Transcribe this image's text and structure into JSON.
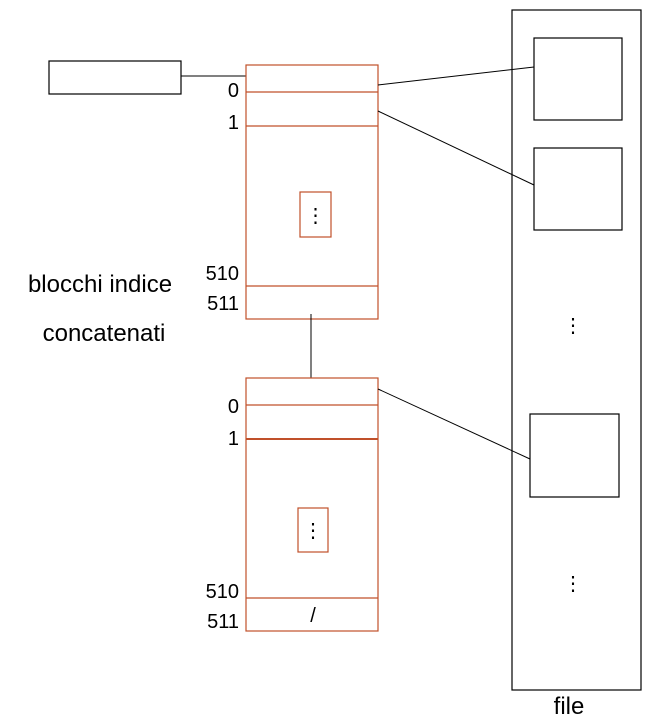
{
  "caption": {
    "line1": "blocchi indice",
    "line2": "concatenati"
  },
  "index_block_1": {
    "labels": [
      "0",
      "1",
      "510",
      "511"
    ],
    "ellipsis": "⋮"
  },
  "index_block_2": {
    "labels": [
      "0",
      "1",
      "510",
      "511"
    ],
    "ellipsis": "⋮",
    "null_marker": "/"
  },
  "file": {
    "label": "file",
    "ellipsis_middle": "⋮",
    "ellipsis_bottom": "⋮"
  },
  "colors": {
    "index_block": "#c0502a",
    "line": "#000000",
    "background": "#ffffff"
  }
}
